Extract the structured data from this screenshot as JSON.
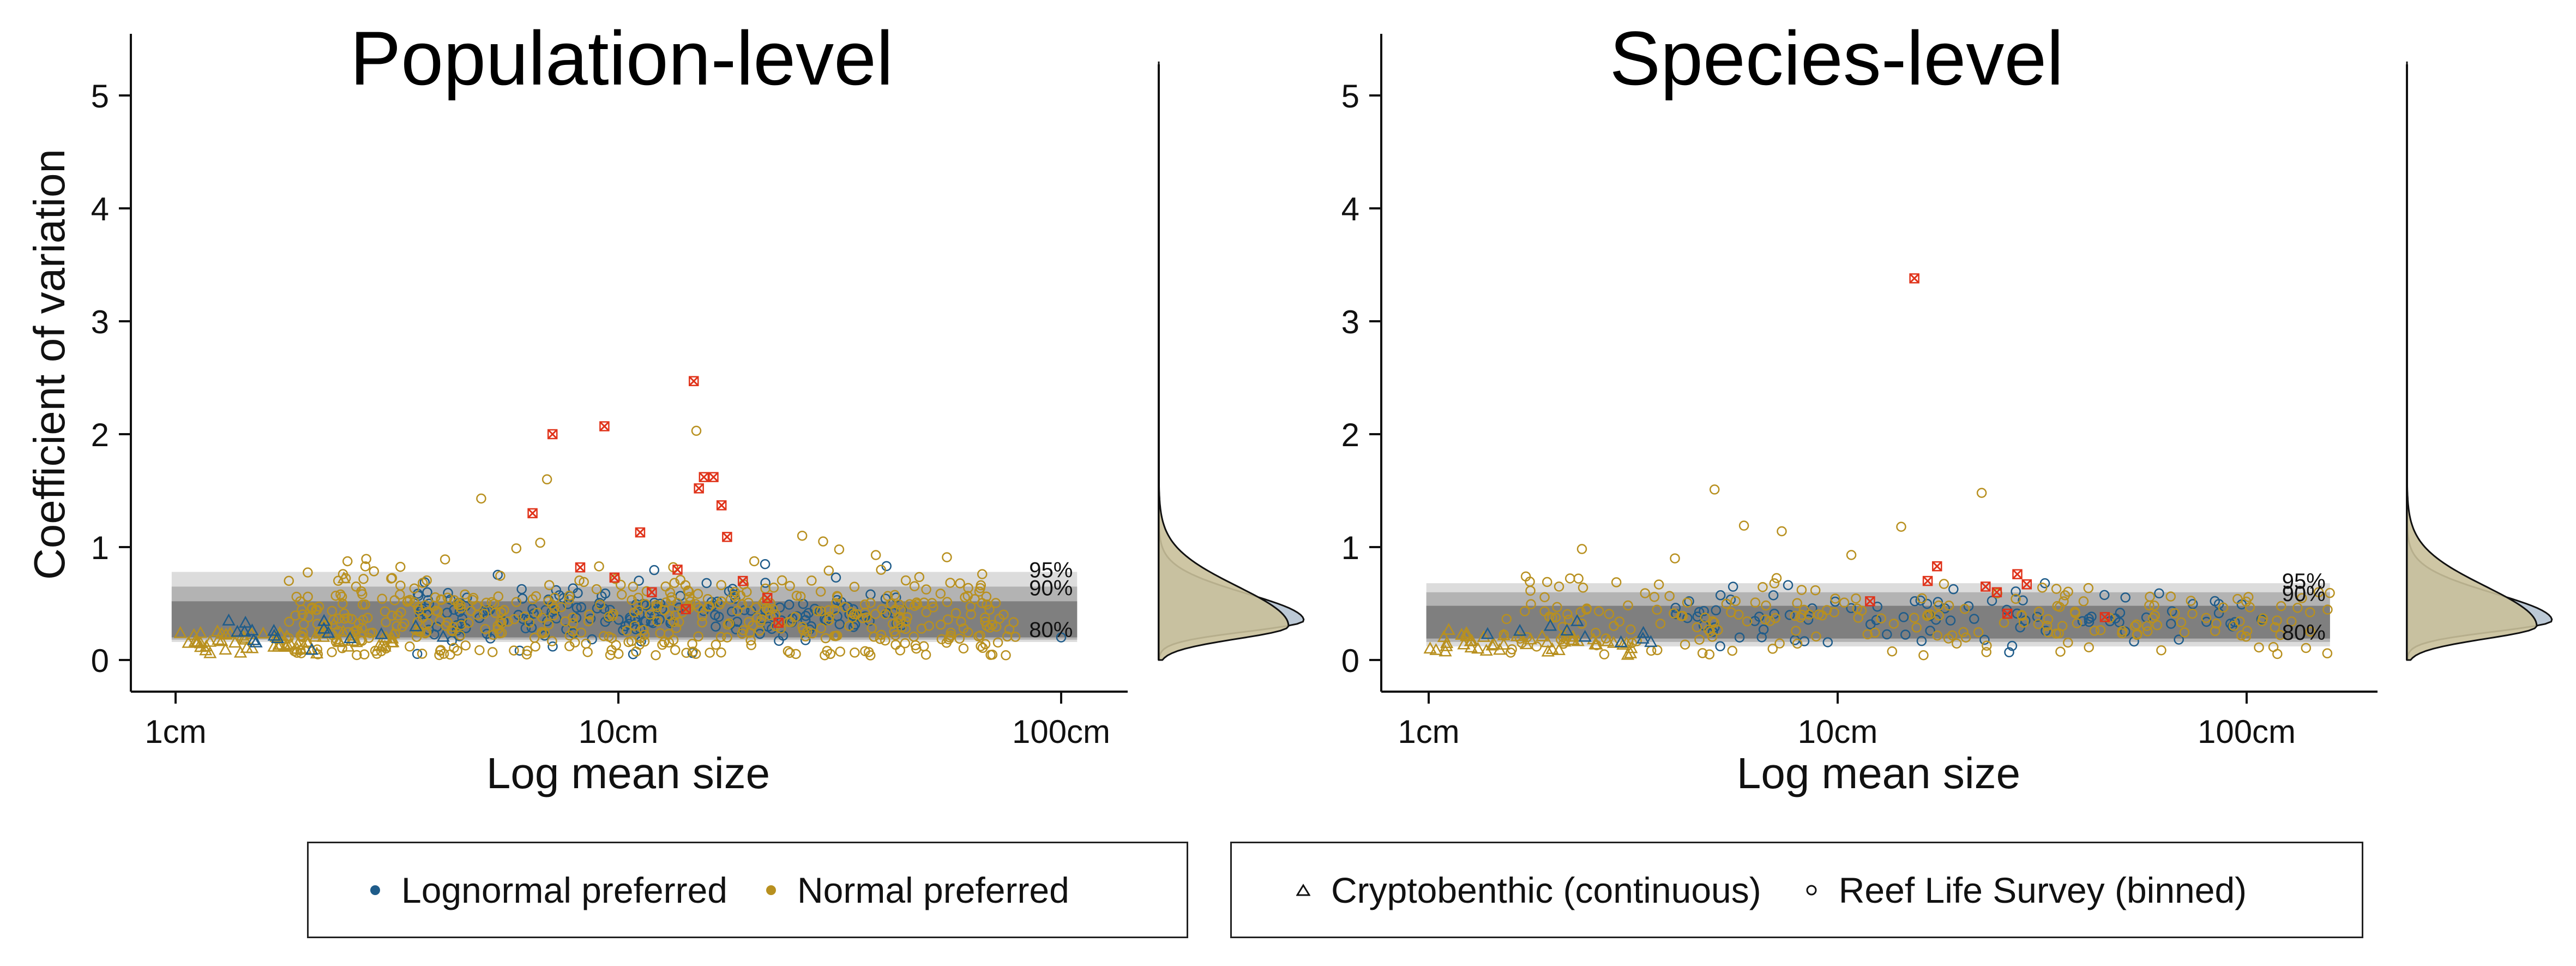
{
  "colors": {
    "lognormal": "#1f5c8a",
    "normal": "#b8901f",
    "outlier": "#e0331a",
    "band80": "#7f7f7f",
    "band90": "#b3b3b3",
    "band95": "#dcdcdc",
    "density_lognormal": "#bcc9d6",
    "density_normal": "#c9c09a"
  },
  "panels": [
    {
      "title": "Population-level",
      "ylabel": "Coefficient of variation",
      "xlabel": "Log mean size",
      "xticks": [
        "1cm",
        "10cm",
        "100cm"
      ],
      "yticks": [
        "0",
        "1",
        "2",
        "3",
        "4",
        "5"
      ],
      "band_labels": [
        "95%",
        "90%",
        "80%"
      ]
    },
    {
      "title": "Species-level",
      "ylabel": "",
      "xlabel": "Log mean size",
      "xticks": [
        "1cm",
        "10cm",
        "100cm"
      ],
      "yticks": [
        "0",
        "1",
        "2",
        "3",
        "4",
        "5"
      ],
      "band_labels": [
        "95%",
        "90%",
        "80%"
      ]
    }
  ],
  "legend": {
    "distribution": [
      {
        "label": "Lognormal preferred",
        "icon": "dot-icon",
        "color": "#1f5c8a"
      },
      {
        "label": "Normal preferred",
        "icon": "dot-icon",
        "color": "#b8901f"
      }
    ],
    "dataset": [
      {
        "label": "Cryptobenthic (continuous)",
        "icon": "triangle-icon"
      },
      {
        "label": "Reef Life Survey (binned)",
        "icon": "circle-icon"
      }
    ]
  },
  "chart_data": [
    {
      "type": "scatter",
      "title": "Population-level",
      "xlabel": "Log mean size",
      "ylabel": "Coefficient of variation",
      "xscale": "log",
      "xlim": [
        0.9,
        115
      ],
      "ylim": [
        -0.3,
        5.4
      ],
      "grid": false,
      "xtick_values_cm": [
        1,
        10,
        100
      ],
      "ytick_values": [
        0,
        1,
        2,
        3,
        4,
        5
      ],
      "bands": [
        {
          "label": "95%",
          "lower": 0.16,
          "upper": 0.78
        },
        {
          "label": "90%",
          "lower": 0.18,
          "upper": 0.65
        },
        {
          "label": "80%",
          "lower": 0.2,
          "upper": 0.52
        }
      ],
      "highlighted_outliers": [
        [
          7.1,
          2.0
        ],
        [
          9.3,
          2.07
        ],
        [
          14.8,
          2.47
        ],
        [
          15.6,
          1.62
        ],
        [
          16.4,
          1.62
        ],
        [
          15.2,
          1.52
        ],
        [
          17.1,
          1.37
        ],
        [
          6.4,
          1.3
        ],
        [
          11.2,
          1.13
        ],
        [
          17.6,
          1.09
        ],
        [
          8.2,
          0.82
        ],
        [
          13.6,
          0.8
        ],
        [
          19.1,
          0.7
        ],
        [
          9.8,
          0.73
        ],
        [
          21.7,
          0.55
        ],
        [
          14.2,
          0.45
        ],
        [
          11.9,
          0.6
        ],
        [
          23.0,
          0.33
        ]
      ],
      "notable_points": [
        {
          "x": 15.0,
          "y": 2.03,
          "group": "Normal preferred",
          "dataset": "Reef Life Survey (binned)"
        },
        {
          "x": 6.9,
          "y": 1.6,
          "group": "Normal preferred",
          "dataset": "Reef Life Survey (binned)"
        },
        {
          "x": 4.9,
          "y": 1.43,
          "group": "Normal preferred",
          "dataset": "Reef Life Survey (binned)"
        },
        {
          "x": 29.0,
          "y": 1.05,
          "group": "Normal preferred",
          "dataset": "Reef Life Survey (binned)"
        },
        {
          "x": 2.4,
          "y": 0.72,
          "group": "Normal preferred",
          "dataset": "Cryptobenthic (continuous)"
        },
        {
          "x": 31.0,
          "y": 0.73,
          "group": "Lognormal preferred",
          "dataset": "Reef Life Survey (binned)"
        },
        {
          "x": 56.0,
          "y": 0.2,
          "group": "Normal preferred",
          "dataset": "Reef Life Survey (binned)"
        },
        {
          "x": 100.0,
          "y": 0.2,
          "group": "Lognormal preferred",
          "dataset": "Reef Life Survey (binned)"
        }
      ],
      "clusters": [
        {
          "group": "Lognormal preferred",
          "dataset": "Reef Life Survey (binned)",
          "n": 180,
          "x_range": [
            3.5,
            45
          ],
          "y_center": 0.4,
          "y_spread": 0.15
        },
        {
          "group": "Normal preferred",
          "dataset": "Reef Life Survey (binned)",
          "n": 500,
          "x_range": [
            1.8,
            80
          ],
          "y_center": 0.38,
          "y_spread": 0.22
        },
        {
          "group": "Normal preferred",
          "dataset": "Cryptobenthic (continuous)",
          "n": 70,
          "x_range": [
            1.0,
            3.2
          ],
          "y_center": 0.17,
          "y_spread": 0.06
        },
        {
          "group": "Lognormal preferred",
          "dataset": "Cryptobenthic (continuous)",
          "n": 18,
          "x_range": [
            1.3,
            4.5
          ],
          "y_center": 0.22,
          "y_spread": 0.07
        }
      ],
      "density_peak_y": 0.3
    },
    {
      "type": "scatter",
      "title": "Species-level",
      "xlabel": "Log mean size",
      "ylabel": "",
      "xscale": "log",
      "xlim": [
        0.9,
        170
      ],
      "ylim": [
        -0.3,
        5.4
      ],
      "grid": false,
      "xtick_values_cm": [
        1,
        10,
        100
      ],
      "ytick_values": [
        0,
        1,
        2,
        3,
        4,
        5
      ],
      "bands": [
        {
          "label": "95%",
          "lower": 0.12,
          "upper": 0.68
        },
        {
          "label": "90%",
          "lower": 0.16,
          "upper": 0.6
        },
        {
          "label": "80%",
          "lower": 0.19,
          "upper": 0.48
        }
      ],
      "highlighted_outliers": [
        [
          15.4,
          3.38
        ],
        [
          17.5,
          0.83
        ],
        [
          27.5,
          0.76
        ],
        [
          16.6,
          0.7
        ],
        [
          23.0,
          0.65
        ],
        [
          29.0,
          0.67
        ],
        [
          24.5,
          0.6
        ],
        [
          26.0,
          0.41
        ],
        [
          45.0,
          0.38
        ],
        [
          12.0,
          0.52
        ]
      ],
      "notable_points": [
        {
          "x": 5.0,
          "y": 1.51,
          "group": "Normal preferred",
          "dataset": "Reef Life Survey (binned)"
        },
        {
          "x": 22.5,
          "y": 1.48,
          "group": "Normal preferred",
          "dataset": "Reef Life Survey (binned)"
        },
        {
          "x": 5.9,
          "y": 1.19,
          "group": "Normal preferred",
          "dataset": "Reef Life Survey (binned)"
        },
        {
          "x": 14.3,
          "y": 1.18,
          "group": "Normal preferred",
          "dataset": "Reef Life Survey (binned)"
        },
        {
          "x": 7.3,
          "y": 1.14,
          "group": "Normal preferred",
          "dataset": "Reef Life Survey (binned)"
        },
        {
          "x": 10.8,
          "y": 0.93,
          "group": "Normal preferred",
          "dataset": "Reef Life Survey (binned)"
        },
        {
          "x": 4.0,
          "y": 0.9,
          "group": "Normal preferred",
          "dataset": "Reef Life Survey (binned)"
        },
        {
          "x": 150.0,
          "y": 0.6,
          "group": "Normal preferred",
          "dataset": "Reef Life Survey (binned)"
        }
      ],
      "clusters": [
        {
          "group": "Lognormal preferred",
          "dataset": "Reef Life Survey (binned)",
          "n": 90,
          "x_range": [
            4,
            110
          ],
          "y_center": 0.38,
          "y_spread": 0.14
        },
        {
          "group": "Normal preferred",
          "dataset": "Reef Life Survey (binned)",
          "n": 220,
          "x_range": [
            1.5,
            160
          ],
          "y_center": 0.35,
          "y_spread": 0.18
        },
        {
          "group": "Normal preferred",
          "dataset": "Cryptobenthic (continuous)",
          "n": 45,
          "x_range": [
            1.0,
            3.2
          ],
          "y_center": 0.16,
          "y_spread": 0.06
        },
        {
          "group": "Lognormal preferred",
          "dataset": "Cryptobenthic (continuous)",
          "n": 10,
          "x_range": [
            1.3,
            3.5
          ],
          "y_center": 0.22,
          "y_spread": 0.06
        }
      ],
      "density_peak_y": 0.3
    }
  ]
}
